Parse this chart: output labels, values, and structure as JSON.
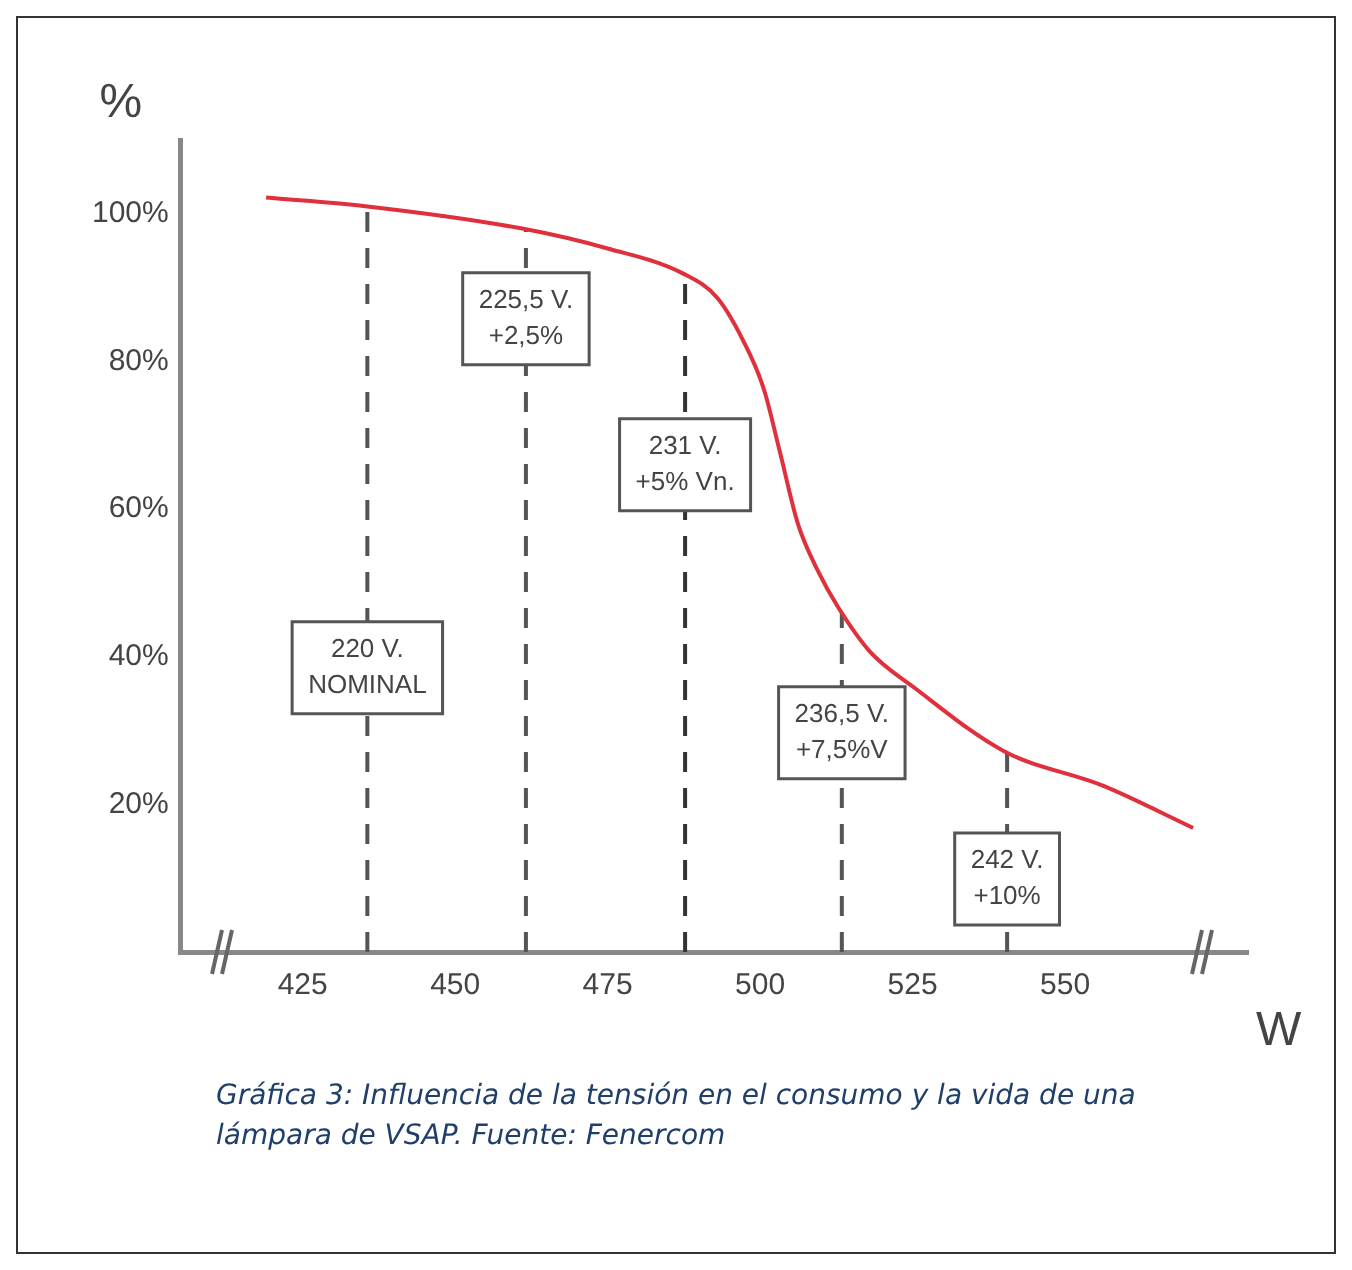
{
  "chart_data": {
    "type": "line",
    "xlabel": "W",
    "ylabel": "%",
    "x": [
      419,
      435.6,
      461,
      475,
      487.4,
      493,
      497.3,
      500.6,
      503.2,
      506.2,
      509.5,
      512.8,
      518,
      525.3,
      540,
      556.3,
      571
    ],
    "series": [
      {
        "color": "#e0303c",
        "values": [
          102.2,
          101,
          98,
          95.3,
          91.9,
          88.6,
          82.7,
          76.3,
          67.9,
          58,
          51.6,
          46.7,
          40.7,
          35.8,
          27.2,
          22.5,
          16.8
        ]
      }
    ],
    "xlim": [
      405,
      580
    ],
    "xticks": [
      425,
      450,
      475,
      500,
      525,
      550
    ],
    "ylim": [
      0,
      110
    ],
    "yticks": [
      {
        "value": 20,
        "label": "20%"
      },
      {
        "value": 40,
        "label": "40%"
      },
      {
        "value": 60,
        "label": "60%"
      },
      {
        "value": 80,
        "label": "80%"
      },
      {
        "value": 100,
        "label": "100%"
      }
    ],
    "ref_lines": [
      {
        "axis": "x",
        "value": 435.6,
        "label": "220 V.\nNOMINAL",
        "line_style": "dashed",
        "color": "#555555"
      },
      {
        "axis": "x",
        "value": 461.6,
        "label": "225,5 V.\n+2,5%",
        "line_style": "dashed",
        "color": "#555555"
      },
      {
        "axis": "x",
        "value": 487.7,
        "label": "231 V.\n+5% Vn.",
        "line_style": "dashed",
        "color": "#333333"
      },
      {
        "axis": "x",
        "value": 513.4,
        "label": "236,5 V.\n+7,5%V",
        "line_style": "dashed",
        "color": "#555555"
      },
      {
        "axis": "x",
        "value": 540.5,
        "label": "242 V.\n+10%",
        "line_style": "dashed",
        "color": "#555555"
      }
    ],
    "annotations": [
      "Gráfica 3: Influencia de la tensión en el consumo y la vida de una lámpara de VSAP. Fuente: Fenercom"
    ],
    "grid": false,
    "legend": false,
    "marker": "none",
    "line_style": "solid"
  }
}
